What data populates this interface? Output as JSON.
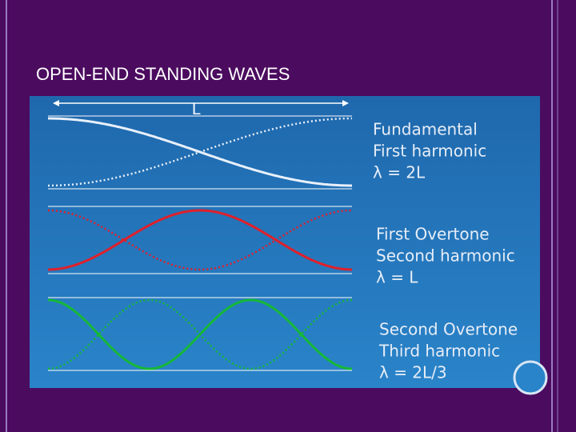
{
  "title": "OPEN-END STANDING WAVES",
  "diagram": {
    "length_label": "L",
    "harmonics": [
      {
        "lines": [
          "Fundamental",
          "First harmonic",
          "λ = 2L"
        ]
      },
      {
        "lines": [
          "First Overtone",
          "Second harmonic",
          "λ = L"
        ]
      },
      {
        "lines": [
          "Second Overtone",
          "Third harmonic",
          "λ = 2L/3"
        ]
      }
    ]
  }
}
